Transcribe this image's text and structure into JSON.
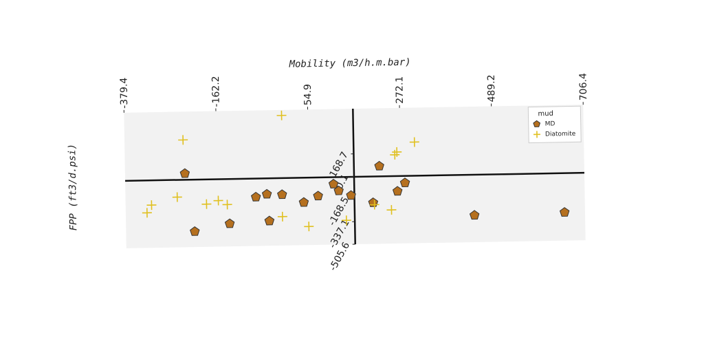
{
  "chart_data": {
    "type": "scatter",
    "x_label": "Mobility (m3/h.m.bar)",
    "y_label": "FPP (ft3/d.psi)",
    "xlim": [
      -379.4,
      706.4
    ],
    "xticks": [
      -379.4,
      -162.2,
      54.9,
      272.1,
      489.2,
      706.4
    ],
    "ylim": [
      -505.6,
      505.6
    ],
    "yticks": [
      168.7,
      0.1,
      -168.5,
      -337.1,
      -505.6
    ],
    "legend_title": "mud",
    "legend_position": "upper right",
    "series": [
      {
        "name": "MD",
        "color": "#b5701f",
        "marker": "pentagon",
        "x": [
          -238,
          -217,
          -134,
          -71,
          -45,
          -9,
          -40,
          42,
          76,
          113,
          125,
          154,
          206,
          222,
          264,
          282,
          445,
          658
        ],
        "values": [
          44,
          -390,
          -336,
          -141,
          -121,
          -126,
          -321,
          -187,
          -141,
          -54,
          -105,
          -141,
          -198,
          74,
          -116,
          -54,
          -305,
          -295
        ]
      },
      {
        "name": "Diatomite",
        "color": "#e0c020",
        "marker": "plus",
        "x": [
          -7,
          -241,
          -329,
          -318,
          -257,
          -188,
          -160,
          -139,
          -9,
          53,
          142,
          209,
          249,
          259,
          264,
          306
        ],
        "values": [
          465,
          295,
          -244,
          -187,
          -131,
          -187,
          -162,
          -193,
          -290,
          -367,
          -326,
          -213,
          -254,
          157,
          177,
          249
        ]
      }
    ]
  }
}
